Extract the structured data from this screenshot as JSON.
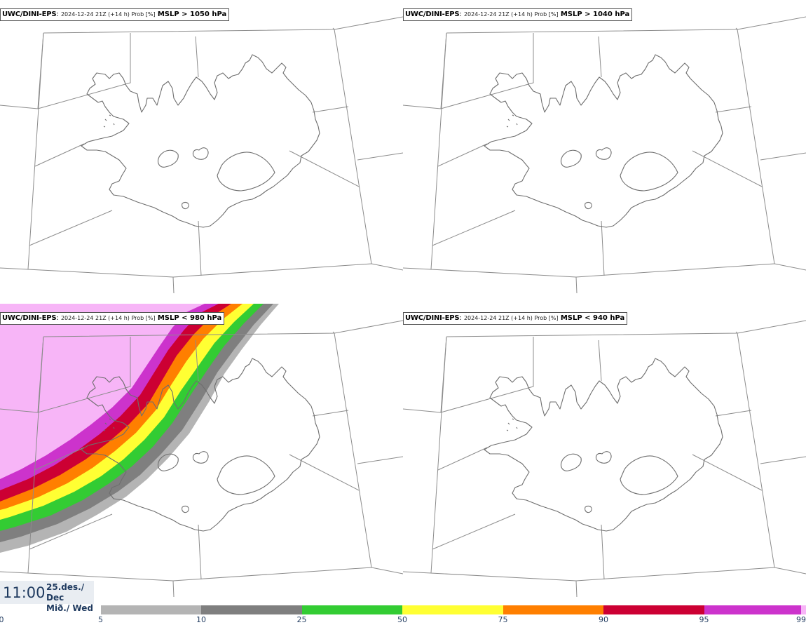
{
  "panels": [
    {
      "model": "UWC/DINI-EPS",
      "run": "2024-12-24 21Z (+14 h) Prob [%]",
      "param": "MSLP > 1050 hPa"
    },
    {
      "model": "UWC/DINI-EPS",
      "run": "2024-12-24 21Z (+14 h) Prob [%]",
      "param": "MSLP > 1040 hPa"
    },
    {
      "model": "UWC/DINI-EPS",
      "run": "2024-12-24 21Z (+14 h) Prob [%]",
      "param": "MSLP < 980 hPa"
    },
    {
      "model": "UWC/DINI-EPS",
      "run": "2024-12-24 21Z (+14 h) Prob [%]",
      "param": "MSLP < 940 hPa"
    }
  ],
  "valid_time": {
    "time": "11:00",
    "date_line1": "25.des./ Dec",
    "date_line2": "Mið./ Wed"
  },
  "legend": {
    "ticks": [
      "0",
      "5",
      "10",
      "25",
      "50",
      "75",
      "90",
      "95",
      "99"
    ],
    "colors": [
      "#b4b4b4",
      "#7f7f7f",
      "#33cc33",
      "#ffff33",
      "#ff7f00",
      "#cc0033",
      "#cc33cc",
      "#f7b5f7"
    ]
  }
}
